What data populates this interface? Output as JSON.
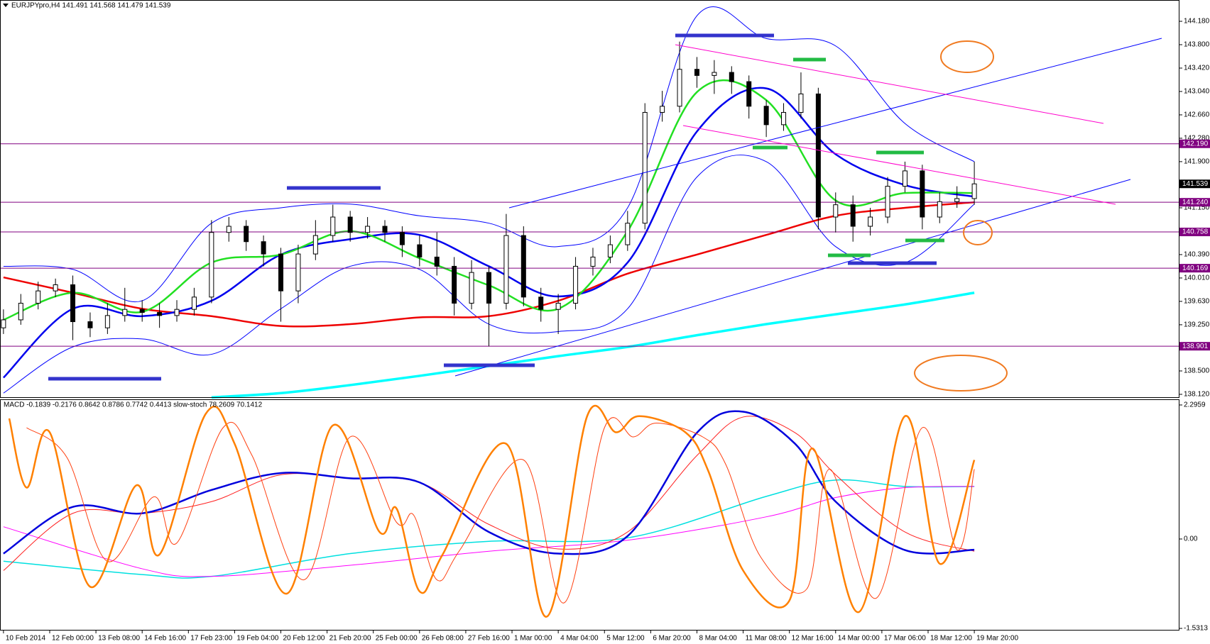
{
  "chart_data": [
    {
      "type": "candlestick",
      "title": "EURJPYpro,H4  141.491 141.568 141.479 141.539",
      "x": [
        0,
        3,
        6,
        9,
        12,
        15,
        18,
        21,
        24,
        27,
        30,
        33,
        36,
        39,
        42,
        45,
        48,
        51,
        54,
        57,
        60,
        63,
        66,
        69,
        72,
        75,
        78,
        81,
        84,
        87,
        90,
        93,
        96,
        99,
        102,
        105,
        108,
        111,
        114,
        117,
        120,
        123,
        126,
        129,
        132,
        135,
        138,
        141,
        144,
        147,
        150,
        153,
        156,
        159,
        162,
        165,
        168
      ],
      "open": [
        139.2,
        139.33,
        139.6,
        139.8,
        139.9,
        139.3,
        139.2,
        139.4,
        139.5,
        139.45,
        139.4,
        139.5,
        139.7,
        140.75,
        140.85,
        140.6,
        140.4,
        139.8,
        140.4,
        140.7,
        141.0,
        140.75,
        140.85,
        140.75,
        140.55,
        140.35,
        140.2,
        139.6,
        140.1,
        139.6,
        140.7,
        139.7,
        139.5,
        139.6,
        140.2,
        140.35,
        140.55,
        140.9,
        142.7,
        142.8,
        143.4,
        143.3,
        143.35,
        143.2,
        142.8,
        142.5,
        142.7,
        143.0,
        141.0,
        141.2,
        140.85,
        141.0,
        141.5,
        141.75,
        141.0,
        141.25,
        141.3
      ],
      "high": [
        139.5,
        139.75,
        139.95,
        140.0,
        140.05,
        139.45,
        139.6,
        139.85,
        139.65,
        139.6,
        139.65,
        139.85,
        140.95,
        141.0,
        140.95,
        140.7,
        140.5,
        140.55,
        140.95,
        141.2,
        141.1,
        141.0,
        140.95,
        140.85,
        140.7,
        140.75,
        140.35,
        140.3,
        140.2,
        141.05,
        140.85,
        139.85,
        139.75,
        140.35,
        140.5,
        140.7,
        141.1,
        142.85,
        143.05,
        143.85,
        143.6,
        143.55,
        143.45,
        143.3,
        142.9,
        142.85,
        143.35,
        143.1,
        141.4,
        141.35,
        141.15,
        141.65,
        141.9,
        141.85,
        141.4,
        141.5,
        141.9
      ],
      "low": [
        139.1,
        139.25,
        139.5,
        139.7,
        139.0,
        139.05,
        139.1,
        139.3,
        139.3,
        139.2,
        139.3,
        139.4,
        139.6,
        140.6,
        140.45,
        140.2,
        139.3,
        139.6,
        140.3,
        140.6,
        140.6,
        140.65,
        140.6,
        140.35,
        140.2,
        140.05,
        139.4,
        139.5,
        138.9,
        139.5,
        139.55,
        139.3,
        139.1,
        139.5,
        140.05,
        140.25,
        140.45,
        140.8,
        142.55,
        142.7,
        143.1,
        143.0,
        143.0,
        142.6,
        142.3,
        142.4,
        142.6,
        140.8,
        140.75,
        140.6,
        140.7,
        140.9,
        141.4,
        140.8,
        140.9,
        141.15,
        141.2
      ],
      "close": [
        139.33,
        139.6,
        139.8,
        139.9,
        139.3,
        139.2,
        139.4,
        139.5,
        139.45,
        139.4,
        139.5,
        139.7,
        140.75,
        140.85,
        140.6,
        140.4,
        139.8,
        140.4,
        140.7,
        141.0,
        140.75,
        140.85,
        140.75,
        140.55,
        140.35,
        140.2,
        139.6,
        140.1,
        139.6,
        140.7,
        139.7,
        139.5,
        139.6,
        140.2,
        140.35,
        140.55,
        140.9,
        142.7,
        142.8,
        143.4,
        143.3,
        143.35,
        143.2,
        142.8,
        142.5,
        142.7,
        143.0,
        141.0,
        141.2,
        140.85,
        141.0,
        141.5,
        141.75,
        141.0,
        141.25,
        141.3,
        141.539
      ],
      "up_color": "#ffffff",
      "down_color": "#000000",
      "candle_stroke": "#000000",
      "xlim": [
        -0.6,
        203.5
      ],
      "ylim": [
        138.062,
        144.526
      ],
      "yticks": [
        {
          "value": 144.18,
          "label": "144.180"
        },
        {
          "value": 143.8,
          "label": "143.800"
        },
        {
          "value": 143.42,
          "label": "143.420"
        },
        {
          "value": 143.04,
          "label": "143.040"
        },
        {
          "value": 142.66,
          "label": "142.660"
        },
        {
          "value": 142.28,
          "label": "142.280"
        },
        {
          "value": 141.9,
          "label": "141.900"
        },
        {
          "value": 141.15,
          "label": "141.150"
        },
        {
          "value": 140.39,
          "label": "140.390"
        },
        {
          "value": 140.01,
          "label": "140.010"
        },
        {
          "value": 139.63,
          "label": "139.630"
        },
        {
          "value": 139.25,
          "label": "139.250"
        },
        {
          "value": 138.5,
          "label": "138.500"
        },
        {
          "value": 138.12,
          "label": "138.120"
        }
      ],
      "levels": [
        {
          "value": 142.19,
          "label": "142.190"
        },
        {
          "value": 141.24,
          "label": "141.240"
        },
        {
          "value": 140.758,
          "label": "140.758"
        },
        {
          "value": 140.169,
          "label": "140.169"
        },
        {
          "value": 138.901,
          "label": "138.901"
        }
      ],
      "level_color": "#800080",
      "last_price": {
        "value": 141.539,
        "label": "141.539"
      },
      "series": [
        {
          "color": "#0000ff",
          "width": 1,
          "x": [
            0,
            12,
            24,
            36,
            48,
            60,
            72,
            84,
            96,
            108,
            120,
            132,
            144,
            156,
            168
          ],
          "values": [
            140.2,
            140.15,
            139.64,
            140.9,
            141.15,
            141.21,
            141.02,
            140.9,
            140.52,
            141.15,
            144.27,
            143.9,
            143.78,
            142.52,
            141.9
          ]
        },
        {
          "color": "#0000ff",
          "width": 1,
          "x": [
            0,
            12,
            24,
            36,
            48,
            60,
            72,
            84,
            96,
            108,
            120,
            132,
            144,
            156,
            168
          ],
          "values": [
            138.14,
            138.89,
            139.02,
            138.77,
            139.51,
            140.2,
            140.15,
            139.26,
            139.14,
            139.51,
            141.65,
            141.9,
            140.52,
            140.26,
            141.21
          ]
        },
        {
          "color": "#00ffff",
          "width": 3.5,
          "x": [
            0,
            12,
            24,
            36,
            48,
            60,
            72,
            84,
            96,
            108,
            120,
            132,
            144,
            156,
            168
          ],
          "values": [
            null,
            null,
            null,
            138.07,
            138.14,
            138.27,
            138.42,
            138.58,
            138.74,
            138.89,
            139.08,
            139.26,
            139.42,
            139.58,
            139.77
          ]
        },
        {
          "color": "#ee0000",
          "width": 2.5,
          "x": [
            0,
            12,
            24,
            36,
            48,
            60,
            72,
            84,
            96,
            108,
            120,
            132,
            144,
            156,
            168
          ],
          "values": [
            140.02,
            139.77,
            139.51,
            139.39,
            139.23,
            139.26,
            139.37,
            139.39,
            139.64,
            140.08,
            140.39,
            140.71,
            141.02,
            141.15,
            141.24
          ]
        },
        {
          "color": "#0000ee",
          "width": 2.5,
          "x": [
            0,
            12,
            24,
            36,
            48,
            60,
            72,
            84,
            96,
            108,
            120,
            132,
            144,
            156,
            168
          ],
          "values": [
            138.39,
            139.51,
            139.39,
            139.64,
            140.39,
            140.64,
            140.71,
            140.2,
            139.71,
            140.26,
            142.39,
            143.09,
            142.02,
            141.52,
            141.33
          ]
        },
        {
          "color": "#22e022",
          "width": 2.5,
          "x": [
            0,
            12,
            24,
            36,
            48,
            60,
            72,
            84,
            96,
            108,
            120,
            132,
            144,
            156,
            168
          ],
          "values": [
            139.33,
            139.77,
            139.46,
            140.26,
            140.39,
            140.77,
            140.33,
            139.89,
            139.51,
            140.77,
            143.03,
            142.9,
            141.27,
            141.39,
            141.39
          ]
        }
      ]
    },
    {
      "type": "line",
      "title": "MACD -0.1839 -0.2176 0.8642 0.8786 0.7742 0.4413 slow-stoch 78.2609 70.1412",
      "xlim": [
        -0.6,
        203.5
      ],
      "xticks": [
        {
          "value": 0,
          "label": "10 Feb 2014"
        },
        {
          "value": 8,
          "label": "12 Feb 00:00"
        },
        {
          "value": 16,
          "label": "13 Feb 08:00"
        },
        {
          "value": 24,
          "label": "14 Feb 16:00"
        },
        {
          "value": 32,
          "label": "17 Feb 23:00"
        },
        {
          "value": 40,
          "label": "19 Feb 04:00"
        },
        {
          "value": 48,
          "label": "20 Feb 12:00"
        },
        {
          "value": 56,
          "label": "21 Feb 20:00"
        },
        {
          "value": 64,
          "label": "25 Feb 00:00"
        },
        {
          "value": 72,
          "label": "26 Feb 08:00"
        },
        {
          "value": 80,
          "label": "27 Feb 16:00"
        },
        {
          "value": 88,
          "label": "1 Mar 00:00"
        },
        {
          "value": 96,
          "label": "4 Mar 04:00"
        },
        {
          "value": 104,
          "label": "5 Mar 12:00"
        },
        {
          "value": 112,
          "label": "6 Mar 20:00"
        },
        {
          "value": 120,
          "label": "8 Mar 04:00"
        },
        {
          "value": 128,
          "label": "11 Mar 08:00"
        },
        {
          "value": 136,
          "label": "12 Mar 16:00"
        },
        {
          "value": 144,
          "label": "14 Mar 00:00"
        },
        {
          "value": 152,
          "label": "17 Mar 06:00"
        },
        {
          "value": 160,
          "label": "18 Mar 12:00"
        },
        {
          "value": 168,
          "label": "19 Mar 20:00"
        }
      ],
      "ylim": [
        -1.5676,
        2.3807
      ],
      "yticks": [
        2.2959,
        {
          "value": 0,
          "label": "0.00"
        },
        -1.5313
      ],
      "y2lim": [
        0,
        100
      ],
      "series": [
        {
          "color": "#00e0e0",
          "width": 1.5,
          "x": [
            0,
            24,
            36,
            60,
            84,
            108,
            132,
            144,
            156,
            168
          ],
          "values": [
            -0.38,
            -0.61,
            -0.64,
            -0.25,
            -0.04,
            0.02,
            0.73,
            1.01,
            0.9,
            0.9
          ]
        },
        {
          "color": "#ff00ff",
          "width": 1,
          "x": [
            0,
            24,
            36,
            60,
            84,
            108,
            132,
            144,
            156,
            168
          ],
          "values": [
            0.21,
            -0.51,
            -0.64,
            -0.45,
            -0.21,
            -0.02,
            0.38,
            0.71,
            0.88,
            0.9
          ]
        },
        {
          "color": "#ff2020",
          "width": 1,
          "x": [
            0,
            12,
            24,
            36,
            48,
            60,
            72,
            84,
            96,
            108,
            120,
            128,
            137,
            144,
            156,
            168
          ],
          "values": [
            -0.54,
            0.44,
            0.44,
            0.64,
            1.1,
            1.04,
            0.97,
            0.25,
            -0.17,
            0.12,
            1.43,
            2.09,
            1.82,
            1.1,
            0.12,
            -0.21
          ]
        },
        {
          "color": "#0000dd",
          "width": 2.5,
          "x": [
            0,
            12,
            24,
            36,
            48,
            60,
            72,
            84,
            96,
            108,
            120,
            128,
            137,
            144,
            156,
            168
          ],
          "values": [
            -0.25,
            0.55,
            0.44,
            0.84,
            1.13,
            1.04,
            0.97,
            0.12,
            -0.25,
            0.05,
            1.82,
            2.18,
            1.63,
            0.64,
            -0.19,
            -0.1839
          ]
        },
        {
          "color": "#ff4010",
          "width": 1,
          "axis": "y2",
          "x": [
            4,
            11,
            18,
            26,
            30,
            38,
            43,
            52,
            60,
            68,
            71,
            75,
            79,
            90,
            97,
            104,
            109,
            113,
            121,
            125,
            131,
            139,
            143,
            151,
            159,
            165,
            168
          ],
          "values": [
            88,
            75,
            30,
            58,
            38,
            88,
            76,
            22,
            84,
            47,
            50,
            22,
            35,
            74,
            12,
            88,
            84,
            90,
            84,
            72,
            32,
            18,
            70,
            14,
            88,
            35,
            70
          ]
        },
        {
          "color": "#ff8000",
          "width": 2.5,
          "axis": "y2",
          "x": [
            1,
            4,
            8,
            15,
            23,
            27,
            35,
            40,
            49,
            57,
            65,
            68,
            72,
            76,
            87,
            94,
            101,
            106,
            110,
            118,
            122,
            128,
            136,
            140,
            148,
            156,
            162,
            168
          ],
          "values": [
            92,
            62,
            86,
            19,
            63,
            33,
            94,
            81,
            16,
            89,
            43,
            53,
            17,
            33,
            81,
            6,
            93,
            86,
            93,
            86,
            69,
            26,
            13,
            79,
            8,
            93,
            29,
            74
          ]
        }
      ]
    }
  ]
}
